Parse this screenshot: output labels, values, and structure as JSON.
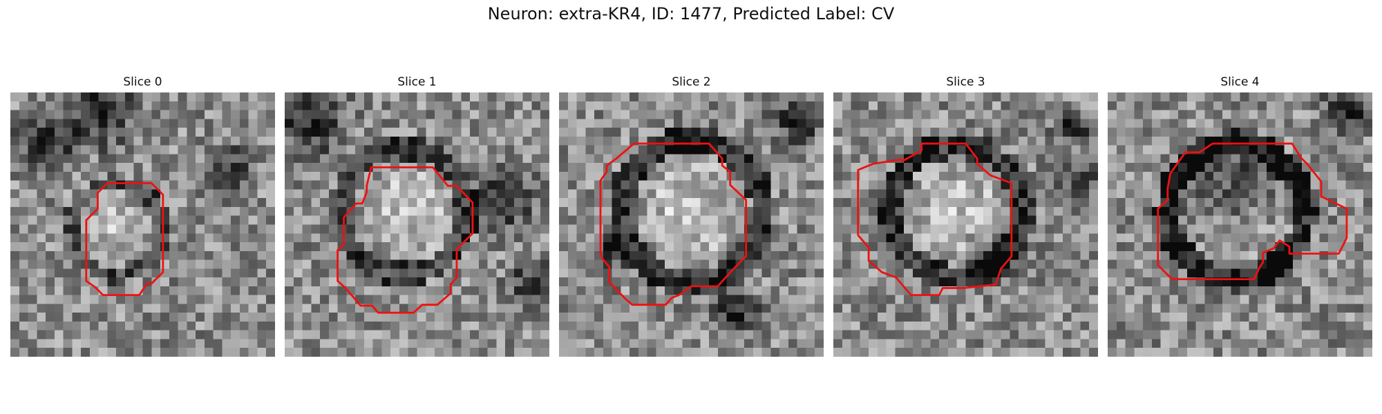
{
  "figure": {
    "title": "Neuron: extra-KR4, ID: 1477, Predicted Label: CV"
  },
  "panels": [
    {
      "title": "Slice 0",
      "seed": 11,
      "image": "grayscale-em-patch",
      "contour_color": "#ee1111"
    },
    {
      "title": "Slice 1",
      "seed": 23,
      "image": "grayscale-em-patch",
      "contour_color": "#ee1111"
    },
    {
      "title": "Slice 2",
      "seed": 37,
      "image": "grayscale-em-patch",
      "contour_color": "#ee1111"
    },
    {
      "title": "Slice 3",
      "seed": 41,
      "image": "grayscale-em-patch",
      "contour_color": "#ee1111"
    },
    {
      "title": "Slice 4",
      "seed": 59,
      "image": "grayscale-em-patch",
      "contour_color": "#ee1111"
    }
  ]
}
